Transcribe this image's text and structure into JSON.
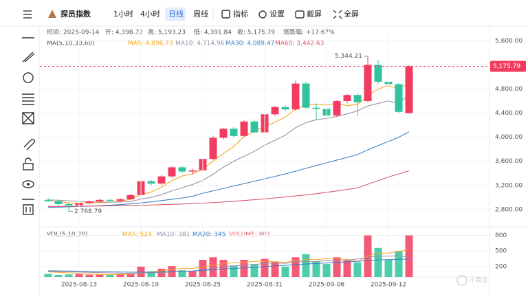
{
  "toolbar": {
    "title": "探员指数",
    "periods": [
      "1小时",
      "4小时",
      "日线",
      "周线"
    ],
    "tools": [
      "指标",
      "设置",
      "截屏",
      "全屏"
    ]
  },
  "info": [
    "时间: 2025-09-14",
    "开: 4,398.72",
    "高: 5,193.23",
    "低: 4,391.84",
    "收: 5,175.79",
    "涨跌幅: +17.67%"
  ],
  "watermark": "小黑盒",
  "chart_data": [
    {
      "type": "candlestick",
      "legend_title": "MA(5,10,30,60)",
      "up_color": "#f23c5f",
      "down_color": "#2fc49c",
      "open": [
        2960,
        2940,
        2890,
        2870,
        2910,
        2935,
        2960,
        2945,
        2970,
        3040,
        3270,
        3230,
        3350,
        3500,
        3430,
        3450,
        3640,
        3990,
        4140,
        4020,
        4260,
        4080,
        4380,
        4500,
        4460,
        4890,
        4490,
        4470,
        4360,
        4600,
        4700,
        4600,
        5200,
        4920,
        4880,
        4398.72
      ],
      "high": [
        2990,
        2960,
        2910,
        2930,
        2950,
        2980,
        2975,
        2990,
        3060,
        3300,
        3290,
        3380,
        3520,
        3520,
        3480,
        3660,
        4020,
        4160,
        4170,
        4280,
        4290,
        4400,
        4520,
        4530,
        4940,
        4920,
        4560,
        4500,
        4620,
        4720,
        4730,
        5344.21,
        5280,
        4950,
        4900,
        5193.23
      ],
      "low": [
        2920,
        2860,
        2768.79,
        2850,
        2890,
        2915,
        2930,
        2930,
        2950,
        3020,
        3200,
        3210,
        3330,
        3410,
        3380,
        3420,
        3620,
        3960,
        4000,
        4000,
        4060,
        4060,
        4350,
        4430,
        4440,
        4470,
        4280,
        4350,
        4340,
        4560,
        4350,
        4580,
        4880,
        4840,
        4400,
        4391.84
      ],
      "close": [
        2940,
        2890,
        2870,
        2910,
        2935,
        2960,
        2945,
        2970,
        3040,
        3270,
        3230,
        3350,
        3500,
        3430,
        3450,
        3640,
        3990,
        4140,
        4020,
        4260,
        4080,
        4380,
        4500,
        4460,
        4890,
        4490,
        4470,
        4360,
        4600,
        4700,
        4580,
        5200,
        4920,
        4880,
        4420,
        5175.79
      ],
      "ylim": [
        2570,
        5820
      ],
      "yticks": [
        {
          "value": 5600,
          "label": "5,600.00"
        },
        {
          "value": 5200,
          "label": "5,200.00"
        },
        {
          "value": 4800,
          "label": "4,800.00"
        },
        {
          "value": 4400,
          "label": "4,400.00"
        },
        {
          "value": 4000,
          "label": "4,000.00"
        },
        {
          "value": 3600,
          "label": "3,600.00"
        },
        {
          "value": 3200,
          "label": "3,200.00"
        },
        {
          "value": 2800,
          "label": "2,800.00"
        }
      ],
      "last_price": {
        "value": 5175.79,
        "label": "5,175.79"
      },
      "annotations": [
        {
          "value": 5344.21,
          "label": "5,344.21",
          "index": 31
        },
        {
          "value": 2768.79,
          "label": "2,768.79",
          "index": 2
        }
      ],
      "lines": [
        {
          "name": "MA5: 4,896.73",
          "color": "#f5a623",
          "values": [
            2950,
            2930,
            2910,
            2905,
            2909,
            2913,
            2922,
            2938,
            2970,
            3045,
            3091,
            3172,
            3278,
            3356,
            3392,
            3474,
            3602,
            3730,
            3848,
            4010,
            4098,
            4176,
            4248,
            4336,
            4462,
            4544,
            4542,
            4534,
            4562,
            4524,
            4542,
            4688,
            4800,
            4856,
            4800,
            4896.73
          ]
        },
        {
          "name": "MA10: 4,714.96",
          "color": "#9a8ca8",
          "values": [
            2960,
            2955,
            2945,
            2935,
            2930,
            2925,
            2922,
            2925,
            2932,
            2973,
            3002,
            3047,
            3110,
            3163,
            3215,
            3283,
            3387,
            3504,
            3602,
            3683,
            3766,
            3869,
            3950,
            4033,
            4158,
            4243,
            4290,
            4312,
            4346,
            4387,
            4437,
            4519,
            4561,
            4603,
            4556,
            4714.96
          ]
        },
        {
          "name": "MA30: 4,089.47",
          "color": "#3a7fc4",
          "values": [
            2834,
            2840,
            2846,
            2852,
            2858,
            2864,
            2872,
            2882,
            2894,
            2910,
            2928,
            2948,
            2970,
            2992,
            3020,
            3070,
            3110,
            3150,
            3190,
            3230,
            3270,
            3310,
            3350,
            3390,
            3435,
            3484,
            3530,
            3575,
            3620,
            3665,
            3712,
            3790,
            3860,
            3930,
            4000,
            4089.47
          ]
        },
        {
          "name": "MA60: 3,442.63",
          "color": "#d9586a",
          "values": [
            2850,
            2852,
            2853,
            2855,
            2857,
            2859,
            2861,
            2863,
            2866,
            2870,
            2875,
            2880,
            2886,
            2892,
            2898,
            2905,
            2915,
            2925,
            2937,
            2950,
            2963,
            2977,
            2992,
            3008,
            3025,
            3043,
            3062,
            3085,
            3108,
            3133,
            3160,
            3220,
            3280,
            3340,
            3390,
            3442.63
          ]
        }
      ]
    },
    {
      "type": "bar",
      "legend_title": "VOL(5,10,20)",
      "categories": [
        null,
        null,
        null,
        "2025-08-13",
        null,
        null,
        null,
        null,
        null,
        "2025-08-19",
        null,
        null,
        null,
        null,
        null,
        "2025-08-25",
        null,
        null,
        null,
        null,
        null,
        "2025-08-31",
        null,
        null,
        null,
        null,
        null,
        "2025-09-06",
        null,
        null,
        null,
        null,
        null,
        "2025-09-12",
        null,
        null
      ],
      "values": [
        60,
        40,
        50,
        55,
        45,
        50,
        40,
        60,
        70,
        200,
        110,
        160,
        210,
        130,
        120,
        330,
        380,
        330,
        220,
        330,
        250,
        350,
        300,
        200,
        380,
        440,
        300,
        250,
        380,
        320,
        280,
        800,
        560,
        330,
        500,
        801
      ],
      "ylim": [
        0,
        900
      ],
      "yticks": [
        800,
        500,
        200
      ],
      "legend_last": "VOLUME: 801",
      "lines": [
        {
          "name": "MA5: 524",
          "color": "#f5a623",
          "values": [
            100,
            90,
            80,
            70,
            60,
            50,
            48,
            50,
            53,
            85,
            100,
            118,
            150,
            162,
            166,
            190,
            230,
            254,
            276,
            278,
            302,
            306,
            290,
            280,
            316,
            334,
            334,
            354,
            350,
            338,
            300,
            406,
            458,
            458,
            494,
            524
          ]
        },
        {
          "name": "MA10: 381",
          "color": "#9a8ca8",
          "values": [
            110,
            105,
            100,
            95,
            90,
            85,
            80,
            75,
            70,
            77,
            78,
            84,
            98,
            108,
            113,
            137,
            171,
            198,
            215,
            222,
            240,
            262,
            272,
            263,
            298,
            290,
            300,
            315,
            305,
            325,
            345,
            380,
            400,
            402,
            410,
            381
          ]
        },
        {
          "name": "MA20: 345",
          "color": "#3a7fc4",
          "values": [
            120,
            118,
            115,
            112,
            108,
            105,
            100,
            96,
            92,
            95,
            95,
            98,
            104,
            110,
            115,
            125,
            140,
            155,
            165,
            175,
            185,
            200,
            215,
            225,
            240,
            250,
            260,
            270,
            280,
            290,
            300,
            320,
            330,
            335,
            340,
            345
          ]
        }
      ]
    }
  ]
}
